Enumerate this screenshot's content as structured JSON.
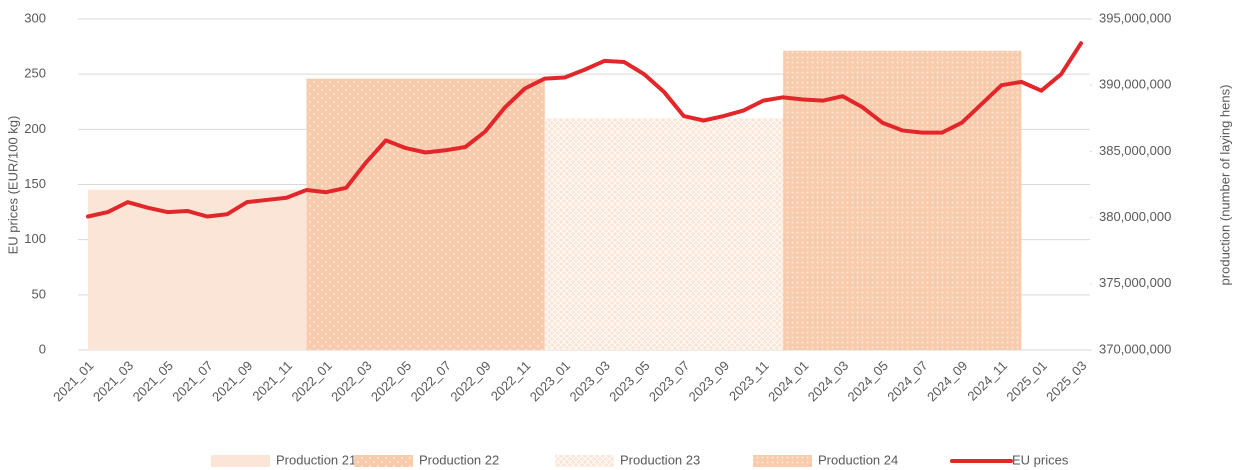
{
  "chart_data": {
    "type": "area-line",
    "categories": [
      "2021_01",
      null,
      "2021_03",
      null,
      "2021_05",
      null,
      "2021_07",
      null,
      "2021_09",
      null,
      "2021_11",
      null,
      "2022_01",
      null,
      "2022_03",
      null,
      "2022_05",
      null,
      "2022_07",
      null,
      "2022_09",
      null,
      "2022_11",
      null,
      "2023_01",
      null,
      "2023_03",
      null,
      "2023_05",
      null,
      "2023_07",
      null,
      "2023_09",
      null,
      "2023_11",
      null,
      "2024_01",
      null,
      "2024_03",
      null,
      "2024_05",
      null,
      "2024_07",
      null,
      "2024_09",
      null,
      "2024_11",
      null,
      "2025_01",
      null,
      "2025_03"
    ],
    "series": [
      {
        "name": "Production 21",
        "type": "area",
        "axis": "y2",
        "color": "#fbe5d6",
        "pattern": "none",
        "values": [
          382100000,
          382100000,
          382100000,
          382100000,
          382100000,
          382100000,
          382100000,
          382100000,
          382100000,
          382100000,
          382100000,
          382100000,
          null,
          null,
          null,
          null,
          null,
          null,
          null,
          null,
          null,
          null,
          null,
          null,
          null,
          null,
          null,
          null,
          null,
          null,
          null,
          null,
          null,
          null,
          null,
          null,
          null,
          null,
          null,
          null,
          null,
          null,
          null,
          null,
          null,
          null,
          null,
          null,
          null,
          null,
          null
        ]
      },
      {
        "name": "Production 22",
        "type": "area",
        "axis": "y2",
        "color": "#f8cbad",
        "pattern": "dots",
        "values": [
          null,
          null,
          null,
          null,
          null,
          null,
          null,
          null,
          null,
          null,
          null,
          390500000,
          390500000,
          390500000,
          390500000,
          390500000,
          390500000,
          390500000,
          390500000,
          390500000,
          390500000,
          390500000,
          390500000,
          390500000,
          null,
          null,
          null,
          null,
          null,
          null,
          null,
          null,
          null,
          null,
          null,
          null,
          null,
          null,
          null,
          null,
          null,
          null,
          null,
          null,
          null,
          null,
          null,
          null,
          null,
          null,
          null
        ]
      },
      {
        "name": "Production 23",
        "type": "area",
        "axis": "y2",
        "color": "#fbe5d6",
        "pattern": "hatch",
        "values": [
          null,
          null,
          null,
          null,
          null,
          null,
          null,
          null,
          null,
          null,
          null,
          null,
          null,
          null,
          null,
          null,
          null,
          null,
          null,
          null,
          null,
          null,
          null,
          387500000,
          387500000,
          387500000,
          387500000,
          387500000,
          387500000,
          387500000,
          387500000,
          387500000,
          387500000,
          387500000,
          387500000,
          387500000,
          null,
          null,
          null,
          null,
          null,
          null,
          null,
          null,
          null,
          null,
          null,
          null,
          null,
          null,
          null
        ]
      },
      {
        "name": "Production 24",
        "type": "area",
        "axis": "y2",
        "color": "#f8cbad",
        "pattern": "dense",
        "values": [
          null,
          null,
          null,
          null,
          null,
          null,
          null,
          null,
          null,
          null,
          null,
          null,
          null,
          null,
          null,
          null,
          null,
          null,
          null,
          null,
          null,
          null,
          null,
          null,
          null,
          null,
          null,
          null,
          null,
          null,
          null,
          null,
          null,
          null,
          null,
          392600000,
          392600000,
          392600000,
          392600000,
          392600000,
          392600000,
          392600000,
          392600000,
          392600000,
          392600000,
          392600000,
          392600000,
          392600000,
          null,
          null,
          null
        ]
      },
      {
        "name": "EU prices",
        "type": "line",
        "color": "#e3262a",
        "values": [
          121,
          125,
          134,
          129,
          125,
          126,
          121,
          123,
          134,
          136,
          138,
          145,
          143,
          147,
          170,
          190,
          183,
          179,
          181,
          184,
          198,
          220,
          237,
          246,
          247,
          254,
          262,
          261,
          250,
          234,
          212,
          208,
          212,
          217,
          226,
          229,
          227,
          226,
          230,
          220,
          206,
          199,
          197,
          197,
          206,
          223,
          240,
          243,
          235,
          250,
          278
        ]
      }
    ],
    "ylabel": "EU prices  (EUR/100 kg)",
    "y2label": "production (number of laying hens)",
    "ylim": [
      0,
      300
    ],
    "yticks": [
      0,
      50,
      100,
      150,
      200,
      250,
      300
    ],
    "y2lim": [
      370000000,
      395000000
    ],
    "y2ticks": [
      {
        "value": 370000000,
        "label": "370,000,000"
      },
      {
        "value": 375000000,
        "label": "375,000,000"
      },
      {
        "value": 380000000,
        "label": "380,000,000"
      },
      {
        "value": 385000000,
        "label": "385,000,000"
      },
      {
        "value": 390000000,
        "label": "390,000,000"
      },
      {
        "value": 395000000,
        "label": "395,000,000"
      }
    ],
    "grid": true,
    "legend": "bottom"
  }
}
